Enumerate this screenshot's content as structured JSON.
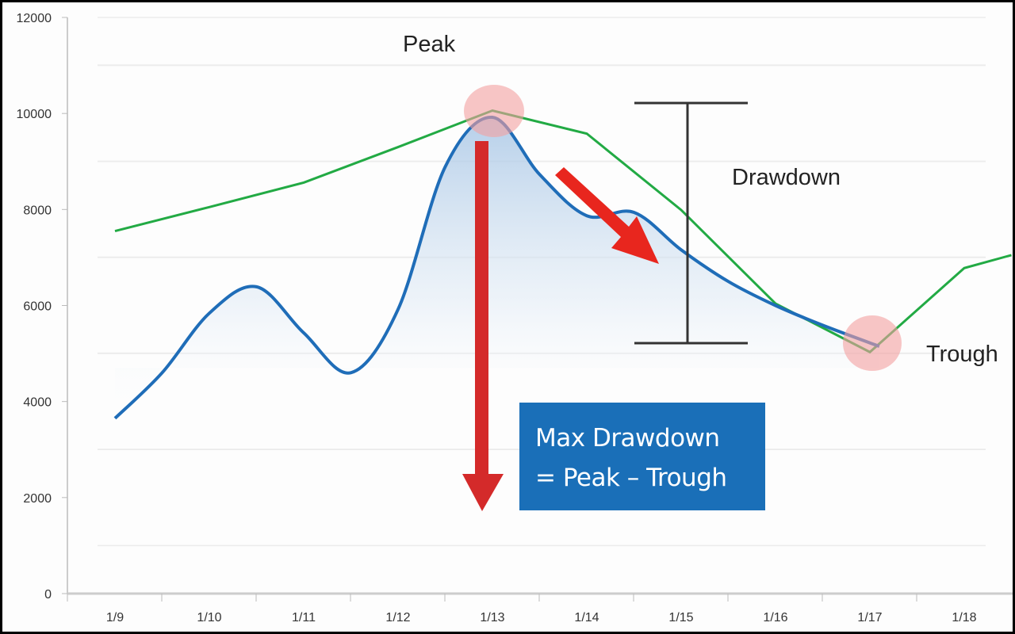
{
  "chart_data": {
    "type": "line",
    "categories": [
      "1/9",
      "1/10",
      "1/11",
      "1/12",
      "1/13",
      "1/14",
      "1/15",
      "1/16",
      "1/17",
      "1/18"
    ],
    "ylim": [
      0,
      12000
    ],
    "yticks": [
      "0",
      "2000",
      "4000",
      "6000",
      "8000",
      "10000",
      "12000"
    ],
    "grid": true,
    "series": [
      {
        "color": "#22aa44",
        "x": [
          0,
          1,
          2,
          3,
          4,
          5,
          6,
          7,
          8,
          9,
          9.5
        ],
        "values": [
          7550,
          8050,
          8560,
          9300,
          10060,
          9580,
          7990,
          6040,
          5030,
          6780,
          7050
        ]
      },
      {
        "color": "#1f6db8",
        "smooth": true,
        "fill": "#c9dcee",
        "x": [
          0,
          0.5,
          1,
          1.5,
          2,
          2.5,
          3,
          3.5,
          4,
          4.5,
          5,
          5.5,
          6,
          6.5,
          7,
          7.5,
          8.1
        ],
        "values": [
          3650,
          4600,
          5840,
          6390,
          5430,
          4600,
          5920,
          8890,
          9920,
          8730,
          7870,
          7940,
          7160,
          6500,
          6000,
          5590,
          5150
        ]
      }
    ],
    "annotations": {
      "peak_label": "Peak",
      "trough_label": "Trough",
      "drawdown_label": "Drawdown",
      "formula_line1": "Max Drawdown",
      "formula_line2": "= Peak – Trough",
      "highlight_color": "#f4a0a0",
      "arrow_color": "#d42a2a",
      "box_color": "#1a6fb8"
    }
  }
}
